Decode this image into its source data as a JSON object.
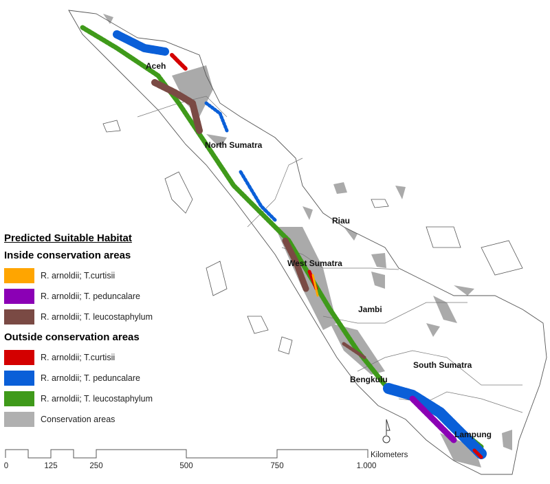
{
  "regions": {
    "aceh": "Aceh",
    "north_sumatra": "North Sumatra",
    "riau": "Riau",
    "west_sumatra": "West Sumatra",
    "jambi": "Jambi",
    "south_sumatra": "South Sumatra",
    "bengkulu": "Bengkulu",
    "lampung": "Lampung"
  },
  "legend": {
    "title": "Predicted Suitable Habitat",
    "inside_heading": "Inside conservation areas",
    "inside": [
      {
        "label": "R. arnoldii; T.curtisii",
        "color": "#FFA500"
      },
      {
        "label": "R. arnoldii; T. peduncalare",
        "color": "#8B00B5"
      },
      {
        "label": "R. arnoldii; T. leucostaphylum",
        "color": "#7A4A44"
      }
    ],
    "outside_heading": "Outside conservation areas",
    "outside": [
      {
        "label": "R. arnoldii; T.curtisii",
        "color": "#D40000"
      },
      {
        "label": "R. arnoldii; T. peduncalare",
        "color": "#0A5FD8"
      },
      {
        "label": "R. arnoldii; T. leucostaphylum",
        "color": "#3F9A1A"
      }
    ],
    "conservation": {
      "label": "Conservation areas",
      "color": "#B0B0B0"
    }
  },
  "scale_bar": {
    "unit": "Kilometers",
    "ticks": [
      "0",
      "125",
      "250",
      "500",
      "750",
      "1.000"
    ]
  },
  "north_arrow": "north-arrow-icon"
}
